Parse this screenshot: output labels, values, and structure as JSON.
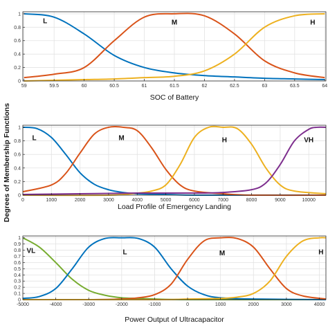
{
  "figure": {
    "ylabel": "Degrees of Membership Functions"
  },
  "chart_data": [
    {
      "type": "line",
      "xlabel": "SOC of Battery",
      "ylabel": "",
      "xlim": [
        58.98,
        64.02
      ],
      "ylim": [
        0,
        1.03
      ],
      "x_ticks": [
        59,
        59.5,
        60,
        60.5,
        61,
        61.5,
        62,
        62.5,
        63,
        63.5,
        64
      ],
      "x_tick_labels": [
        "59",
        "59.5",
        "60",
        "60.5",
        "61",
        "61.5",
        "62",
        "62.5",
        "63",
        "63.5",
        "64"
      ],
      "y_ticks": [
        0,
        0.2,
        0.4,
        0.6,
        0.8,
        1
      ],
      "y_tick_labels": [
        "0",
        "0.2",
        "0.4",
        "0.6",
        "0.8",
        "1"
      ],
      "grid": true,
      "series": [
        {
          "label": "L",
          "color": "#0072BD",
          "x": [
            59,
            59.5,
            60,
            60.5,
            61,
            61.5,
            62,
            62.5,
            63,
            63.5,
            64
          ],
          "y": [
            1.0,
            0.95,
            0.7,
            0.38,
            0.2,
            0.12,
            0.08,
            0.06,
            0.04,
            0.03,
            0.02
          ]
        },
        {
          "label": "M",
          "color": "#D95319",
          "x": [
            59,
            59.5,
            60,
            60.5,
            61,
            61.5,
            62,
            62.5,
            63,
            63.5,
            64
          ],
          "y": [
            0.05,
            0.1,
            0.2,
            0.6,
            0.95,
            1.0,
            0.97,
            0.7,
            0.3,
            0.12,
            0.05
          ]
        },
        {
          "label": "H",
          "color": "#EDB120",
          "x": [
            59,
            59.5,
            60,
            60.5,
            61,
            61.5,
            62,
            62.5,
            63,
            63.5,
            64
          ],
          "y": [
            0.0,
            0.01,
            0.02,
            0.03,
            0.05,
            0.07,
            0.15,
            0.4,
            0.8,
            0.97,
            1.0
          ]
        }
      ],
      "annotations": [
        {
          "text": "L",
          "x": 59.35,
          "y": 0.9
        },
        {
          "text": "M",
          "x": 61.5,
          "y": 0.88
        },
        {
          "text": "H",
          "x": 63.8,
          "y": 0.88
        }
      ]
    },
    {
      "type": "line",
      "xlabel": "Load Profile of Emergency Landing",
      "ylabel": "",
      "xlim": [
        0,
        10600
      ],
      "ylim": [
        0,
        1.03
      ],
      "x_ticks": [
        0,
        1000,
        2000,
        3000,
        4000,
        5000,
        6000,
        7000,
        8000,
        9000,
        10000
      ],
      "x_tick_labels": [
        "0",
        "1000",
        "2000",
        "3000",
        "4000",
        "5000",
        "6000",
        "7000",
        "8000",
        "9000",
        "10000"
      ],
      "y_ticks": [
        0,
        0.2,
        0.4,
        0.6,
        0.8,
        1
      ],
      "y_tick_labels": [
        "0",
        "0.2",
        "0.4",
        "0.6",
        "0.8",
        "1"
      ],
      "grid": true,
      "series": [
        {
          "label": "L",
          "color": "#0072BD",
          "x": [
            0,
            500,
            1000,
            1500,
            2000,
            2500,
            3000,
            3500,
            4000,
            5000,
            6000,
            8000,
            10600
          ],
          "y": [
            1.0,
            0.98,
            0.85,
            0.6,
            0.33,
            0.16,
            0.08,
            0.04,
            0.02,
            0.01,
            0.0,
            0.0,
            0.0
          ]
        },
        {
          "label": "M",
          "color": "#D95319",
          "x": [
            0,
            1000,
            1500,
            2000,
            2500,
            3000,
            3500,
            4000,
            4500,
            5000,
            5500,
            6000,
            7000,
            8000,
            10600
          ],
          "y": [
            0.05,
            0.15,
            0.32,
            0.62,
            0.9,
            1.0,
            1.0,
            0.95,
            0.7,
            0.38,
            0.15,
            0.06,
            0.02,
            0.0,
            0.0
          ]
        },
        {
          "label": "H",
          "color": "#EDB120",
          "x": [
            0,
            3000,
            4000,
            4500,
            5000,
            5500,
            6000,
            6500,
            7000,
            7500,
            8000,
            8500,
            9000,
            9500,
            10600
          ],
          "y": [
            0.0,
            0.0,
            0.03,
            0.06,
            0.15,
            0.45,
            0.85,
            1.0,
            1.0,
            0.98,
            0.75,
            0.4,
            0.15,
            0.06,
            0.02
          ]
        },
        {
          "label": "VH",
          "color": "#7E2F8E",
          "x": [
            0,
            2000,
            4000,
            6000,
            7000,
            8000,
            8500,
            9000,
            9500,
            10000,
            10300,
            10600
          ],
          "y": [
            0.01,
            0.02,
            0.03,
            0.03,
            0.04,
            0.08,
            0.18,
            0.45,
            0.8,
            0.97,
            1.0,
            1.0
          ]
        }
      ],
      "annotations": [
        {
          "text": "L",
          "x": 400,
          "y": 0.85
        },
        {
          "text": "M",
          "x": 3450,
          "y": 0.85
        },
        {
          "text": "H",
          "x": 7050,
          "y": 0.82
        },
        {
          "text": "VH",
          "x": 10000,
          "y": 0.82
        }
      ]
    },
    {
      "type": "line",
      "xlabel": "Power Output of Ultracapacitor",
      "ylabel": "",
      "xlim": [
        -5000,
        4200
      ],
      "ylim": [
        0,
        1.03
      ],
      "x_ticks": [
        -5000,
        -4000,
        -3000,
        -2000,
        -1000,
        0,
        1000,
        2000,
        3000,
        4000
      ],
      "x_tick_labels": [
        "-5000",
        "-4000",
        "-3000",
        "-2000",
        "-1000",
        "0",
        "1000",
        "2000",
        "3000",
        "4000"
      ],
      "y_ticks": [
        0,
        0.1,
        0.2,
        0.3,
        0.4,
        0.5,
        0.6,
        0.7,
        0.8,
        0.9,
        1
      ],
      "y_tick_labels": [
        "0",
        "0.1",
        "0.2",
        "0.3",
        "0.4",
        "0.5",
        "0.6",
        "0.7",
        "0.8",
        "0.9",
        "1"
      ],
      "grid": true,
      "series": [
        {
          "label": "VL",
          "color": "#77AC30",
          "x": [
            -5000,
            -4500,
            -4000,
            -3500,
            -3000,
            -2500,
            -2000,
            -1500,
            -1000,
            0,
            4200
          ],
          "y": [
            1.0,
            0.85,
            0.6,
            0.33,
            0.15,
            0.07,
            0.03,
            0.02,
            0.01,
            0.0,
            0.0
          ]
        },
        {
          "label": "L",
          "color": "#0072BD",
          "x": [
            -5000,
            -4500,
            -4000,
            -3500,
            -3000,
            -2500,
            -2000,
            -1500,
            -1000,
            -500,
            0,
            500,
            1000,
            2000,
            4200
          ],
          "y": [
            0.02,
            0.05,
            0.18,
            0.5,
            0.85,
            0.99,
            1.0,
            0.99,
            0.85,
            0.5,
            0.22,
            0.08,
            0.03,
            0.01,
            0.0
          ]
        },
        {
          "label": "M",
          "color": "#D95319",
          "x": [
            -5000,
            -3000,
            -2000,
            -1500,
            -1000,
            -500,
            0,
            500,
            1000,
            1500,
            2000,
            2500,
            3000,
            3500,
            4200
          ],
          "y": [
            0.0,
            0.0,
            0.01,
            0.03,
            0.08,
            0.25,
            0.65,
            0.95,
            1.0,
            0.99,
            0.85,
            0.5,
            0.18,
            0.06,
            0.01
          ]
        },
        {
          "label": "H",
          "color": "#EDB120",
          "x": [
            -5000,
            -1000,
            0,
            1000,
            1500,
            2000,
            2500,
            3000,
            3500,
            4000,
            4200
          ],
          "y": [
            0.0,
            0.0,
            0.01,
            0.02,
            0.04,
            0.1,
            0.3,
            0.7,
            0.95,
            1.0,
            1.0
          ]
        }
      ],
      "annotations": [
        {
          "text": "VL",
          "x": -4750,
          "y": 0.8
        },
        {
          "text": "L",
          "x": -1900,
          "y": 0.78
        },
        {
          "text": "M",
          "x": 1050,
          "y": 0.76
        },
        {
          "text": "H",
          "x": 4050,
          "y": 0.78
        }
      ]
    }
  ]
}
